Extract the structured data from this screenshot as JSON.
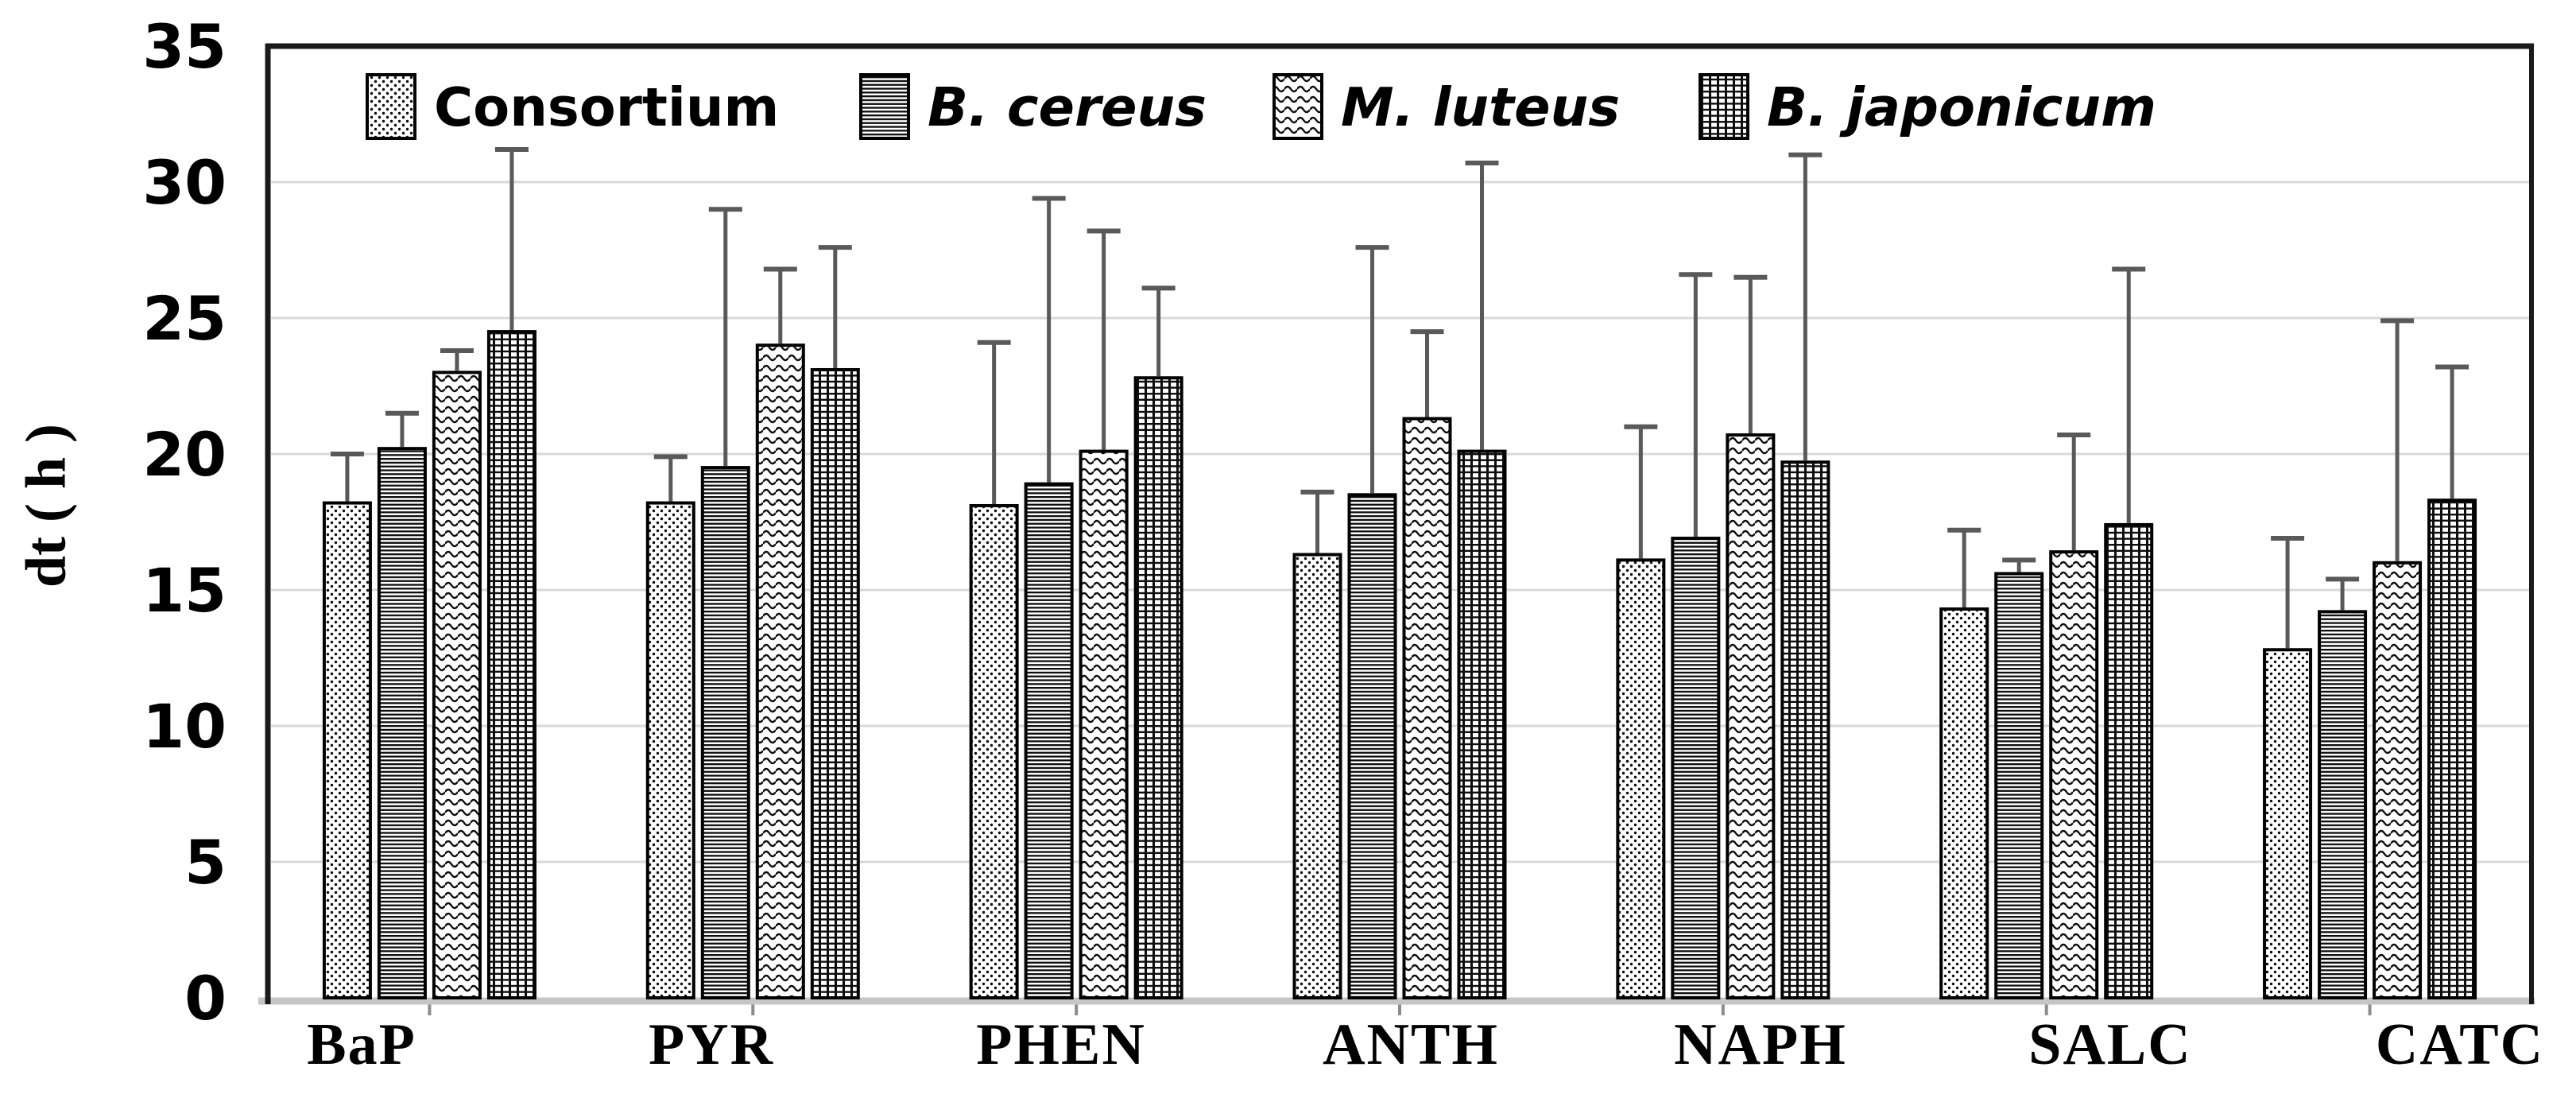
{
  "page": {
    "background": "#ffffff"
  },
  "colors": {
    "text": "#000000",
    "gridline": "#d9d9d9",
    "frame": "#1a1a1a",
    "baseline": "#c6c6c6",
    "axis_tick": "#8c8c8c",
    "error_bar": "#595959",
    "pattern_ink": "#0d0d0d",
    "bar_background": "#ffffff"
  },
  "chart_data": {
    "type": "bar",
    "title": "",
    "xlabel": "",
    "ylabel": "dt ( h )",
    "ylim": [
      0,
      35
    ],
    "yticks": [
      0,
      5,
      10,
      15,
      20,
      25,
      30,
      35
    ],
    "grid": "horizontal-major",
    "legend_position": "top-inside",
    "error_bars": "upper-only",
    "categories": [
      "BaP",
      "PYR",
      "PHEN",
      "ANTH",
      "NAPH",
      "SALC",
      "CATC"
    ],
    "series": [
      {
        "name": "Consortium",
        "italic": false,
        "pattern": "dots",
        "values": [
          18.2,
          18.2,
          18.1,
          16.3,
          16.1,
          14.3,
          12.8
        ],
        "errors_up": [
          1.8,
          1.7,
          6.0,
          2.3,
          4.9,
          2.9,
          4.1
        ]
      },
      {
        "name": "B. cereus",
        "italic": true,
        "pattern": "horizontal-lines",
        "values": [
          20.2,
          19.5,
          18.9,
          18.5,
          16.9,
          15.6,
          14.2
        ],
        "errors_up": [
          1.3,
          9.5,
          10.5,
          9.1,
          9.7,
          0.5,
          1.2
        ]
      },
      {
        "name": "M. luteus",
        "italic": true,
        "pattern": "waves",
        "values": [
          23.0,
          24.0,
          20.1,
          21.3,
          20.7,
          16.4,
          16.0
        ],
        "errors_up": [
          0.8,
          2.8,
          8.1,
          3.2,
          5.8,
          4.3,
          8.9
        ]
      },
      {
        "name": "B. japonicum",
        "italic": true,
        "pattern": "grid",
        "values": [
          24.5,
          23.1,
          22.8,
          20.1,
          19.7,
          17.4,
          18.3
        ],
        "errors_up": [
          6.7,
          4.5,
          3.3,
          10.6,
          11.3,
          9.4,
          4.9
        ]
      }
    ]
  }
}
